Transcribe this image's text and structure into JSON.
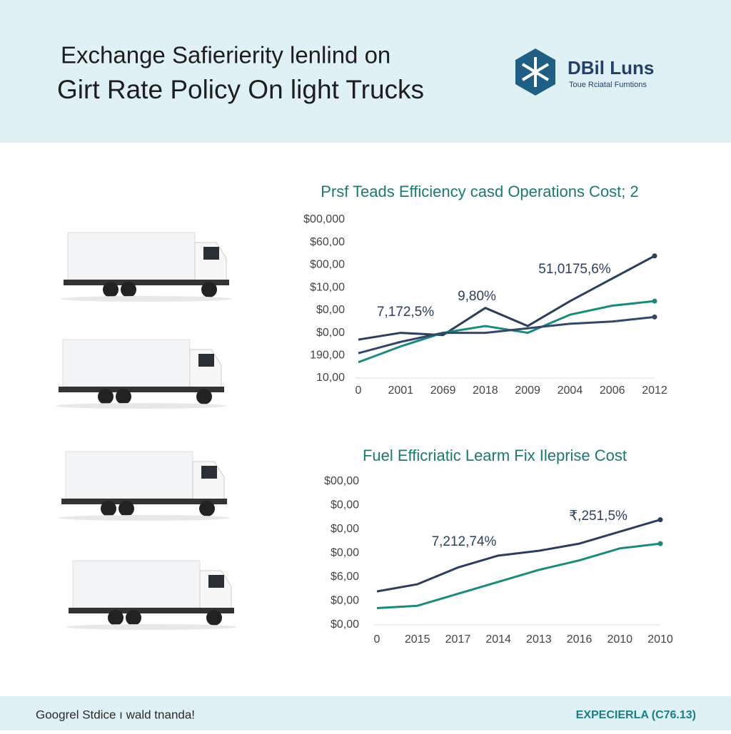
{
  "header": {
    "title_lines": [
      "Exchange Safierierity lenlind on",
      "Girt Rate Policy On light Trucks"
    ],
    "logo": {
      "name": "DBil Luns",
      "tagline": "Toue Rciatal Fumtions"
    }
  },
  "chart_data": [
    {
      "type": "line",
      "title": "Prsf Teads Efficiency casd Operations Cost; 2",
      "categories": [
        "0",
        "2001",
        "2069",
        "2018",
        "2009",
        "2004",
        "2006",
        "2012"
      ],
      "series": [
        {
          "color": "#2b3f5c",
          "values": [
            1.7,
            2.0,
            1.9,
            3.1,
            2.3,
            3.4,
            4.4,
            5.4
          ]
        },
        {
          "color": "#1b8a7e",
          "values": [
            0.7,
            1.4,
            2.0,
            2.3,
            2.0,
            2.8,
            3.2,
            3.4
          ]
        },
        {
          "color": "#34476a",
          "values": [
            1.1,
            1.6,
            2.0,
            2.0,
            2.2,
            2.4,
            2.5,
            2.7
          ]
        }
      ],
      "ylim": [
        0,
        7
      ],
      "yticks": [
        {
          "value": 0,
          "label": "10,00"
        },
        {
          "value": 1,
          "label": "190,00"
        },
        {
          "value": 2,
          "label": "$0,00"
        },
        {
          "value": 3,
          "label": "$0,00"
        },
        {
          "value": 4,
          "label": "$10,00"
        },
        {
          "value": 5,
          "label": "$00,00"
        },
        {
          "value": 6,
          "label": "$60,00"
        },
        {
          "value": 7,
          "label": "$00,000"
        }
      ],
      "annotations": [
        "7,172,5%",
        "9,80%",
        "51,0175,6%"
      ]
    },
    {
      "type": "line",
      "title": "Fuel Efficriatic Learm Fix Ileprise Cost",
      "categories": [
        "0",
        "2015",
        "2017",
        "2014",
        "2013",
        "2016",
        "2010",
        "2010"
      ],
      "series": [
        {
          "color": "#2b3f5c",
          "values": [
            1.4,
            1.7,
            2.4,
            2.9,
            3.1,
            3.4,
            3.9,
            4.4
          ]
        },
        {
          "color": "#1b8a7e",
          "values": [
            0.7,
            0.8,
            1.3,
            1.8,
            2.3,
            2.7,
            3.2,
            3.4
          ]
        }
      ],
      "ylim": [
        0,
        6
      ],
      "yticks": [
        {
          "value": 0,
          "label": "$0,00"
        },
        {
          "value": 1,
          "label": "$0,00"
        },
        {
          "value": 2,
          "label": "$6,00"
        },
        {
          "value": 3,
          "label": "$0,00"
        },
        {
          "value": 4,
          "label": "$0,00"
        },
        {
          "value": 5,
          "label": "$0,00"
        },
        {
          "value": 6,
          "label": "$00,00"
        }
      ],
      "annotations": [
        "7,212,74%",
        "₹,251,5%"
      ]
    }
  ],
  "footer": {
    "left": "Googrel Stdice ı wald tnanda!",
    "right": "EXPECIERLA (C76.13)"
  }
}
